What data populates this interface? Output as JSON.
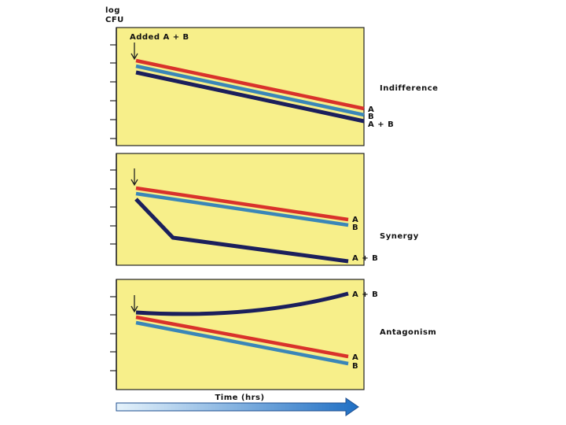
{
  "y_axis_label": [
    "log",
    "CFU"
  ],
  "x_axis_label": "Time (hrs)",
  "panels": [
    {
      "title": "Indifference",
      "annotation": "Added A + B",
      "line_labels": [
        "A",
        "B",
        "A + B"
      ]
    },
    {
      "title": "Synergy",
      "line_labels": [
        "A",
        "B",
        "A + B"
      ]
    },
    {
      "title": "Antagonism",
      "line_labels": [
        "A + B",
        "A",
        "B"
      ]
    }
  ]
}
